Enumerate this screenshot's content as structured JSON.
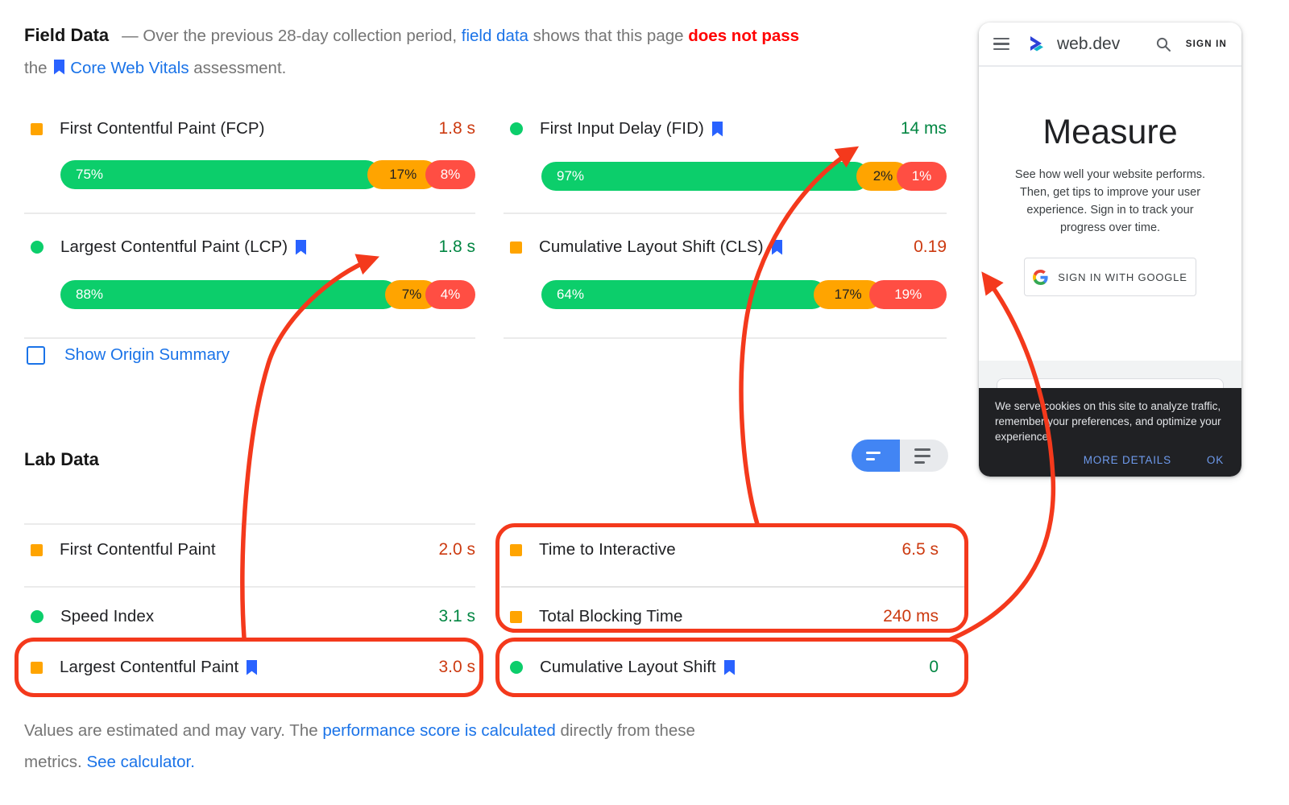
{
  "annotation_color": "#f4391c",
  "header": {
    "title": "Field Data",
    "description": [
      {
        "text": "— Over the previous 28-day collection period, ",
        "style": "gray"
      },
      {
        "text": "field data",
        "style": "blue"
      },
      {
        "text": " shows that this page ",
        "style": "gray"
      },
      {
        "text": "does not pass",
        "style": "red"
      },
      {
        "break": true
      },
      {
        "text": "the ",
        "style": "gray"
      },
      {
        "bookmark": true
      },
      {
        "text": "Core Web Vitals",
        "style": "blue"
      },
      {
        "text": " assessment.",
        "style": "gray"
      }
    ]
  },
  "field_data": {
    "metrics": [
      {
        "id": "fcp",
        "icon": "orange-square",
        "label": "First Contentful Paint (FCP)",
        "bookmark": false,
        "value": "1.8 s",
        "value_color": "orange",
        "distribution": {
          "good_pct": 75,
          "ni_pct": 17,
          "poor_pct": 8,
          "good_label": "75%",
          "ni_label": "17%",
          "poor_label": "8%"
        }
      },
      {
        "id": "fid",
        "icon": "green-circle",
        "label": "First Input Delay (FID)",
        "bookmark": true,
        "value": "14 ms",
        "value_color": "green",
        "distribution": {
          "good_pct": 97,
          "ni_pct": 2,
          "poor_pct": 1,
          "good_label": "97%",
          "ni_label": "2%",
          "poor_label": "1%"
        }
      },
      {
        "id": "lcp",
        "icon": "green-circle",
        "label": "Largest Contentful Paint (LCP)",
        "bookmark": true,
        "value": "1.8 s",
        "value_color": "green",
        "distribution": {
          "good_pct": 88,
          "ni_pct": 7,
          "poor_pct": 4,
          "good_label": "88%",
          "ni_label": "7%",
          "poor_label": "4%"
        }
      },
      {
        "id": "cls",
        "icon": "orange-square",
        "label": "Cumulative Layout Shift (CLS)",
        "bookmark": true,
        "value": "0.19",
        "value_color": "orange",
        "distribution": {
          "good_pct": 64,
          "ni_pct": 17,
          "poor_pct": 19,
          "good_label": "64%",
          "ni_label": "17%",
          "poor_label": "19%"
        }
      }
    ],
    "show_origin_summary": "Show Origin Summary"
  },
  "lab_data": {
    "title": "Lab Data",
    "metrics": [
      {
        "id": "lab-fcp",
        "icon": "orange-square",
        "label": "First Contentful Paint",
        "bookmark": false,
        "value": "2.0 s",
        "value_color": "orange"
      },
      {
        "id": "lab-si",
        "icon": "green-circle",
        "label": "Speed Index",
        "bookmark": false,
        "value": "3.1 s",
        "value_color": "green"
      },
      {
        "id": "lab-lcp",
        "icon": "orange-square",
        "label": "Largest Contentful Paint",
        "bookmark": true,
        "value": "3.0 s",
        "value_color": "orange"
      },
      {
        "id": "lab-tti",
        "icon": "orange-square",
        "label": "Time to Interactive",
        "bookmark": false,
        "value": "6.5 s",
        "value_color": "orange"
      },
      {
        "id": "lab-tbt",
        "icon": "orange-square",
        "label": "Total Blocking Time",
        "bookmark": false,
        "value": "240 ms",
        "value_color": "orange"
      },
      {
        "id": "lab-cls",
        "icon": "green-circle",
        "label": "Cumulative Layout Shift",
        "bookmark": true,
        "value": "0",
        "value_color": "green"
      }
    ]
  },
  "footnote": [
    {
      "text": "Values are estimated and may vary. The ",
      "style": "gray"
    },
    {
      "text": "performance score is calculated",
      "style": "blue"
    },
    {
      "text": " directly from these",
      "style": "gray"
    },
    {
      "break": true
    },
    {
      "text": "metrics. ",
      "style": "gray"
    },
    {
      "text": "See calculator.",
      "style": "blue"
    }
  ],
  "phone": {
    "brand": "web.dev",
    "sign_in": "SIGN IN",
    "hero_title": "Measure",
    "hero_body": "See how well your website performs. Then, get tips to improve your user experience. Sign in to track your progress over time.",
    "google_button": "SIGN IN WITH GOOGLE",
    "cookie": {
      "message": "We serve cookies on this site to analyze traffic, remember your preferences, and optimize your experience.",
      "more_details": "MORE DETAILS",
      "ok": "OK"
    }
  }
}
